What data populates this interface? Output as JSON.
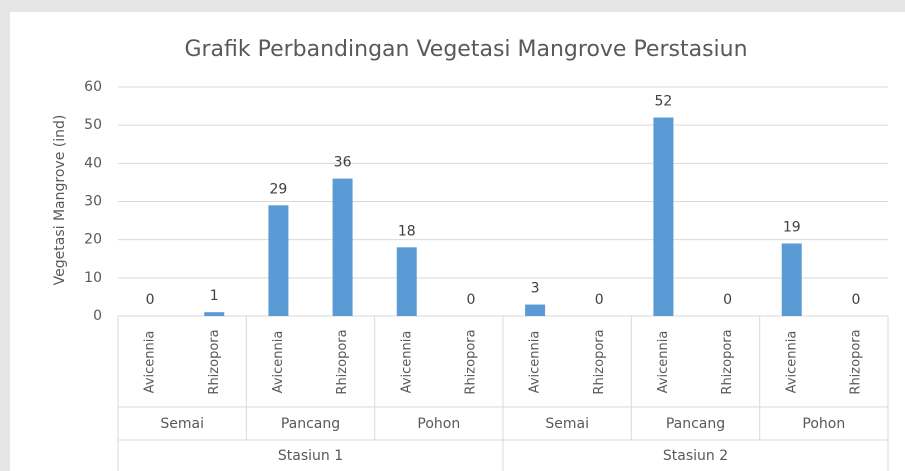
{
  "chart_data": {
    "type": "bar",
    "title": "Grafik Perbandingan Vegetasi Mangrove Perstasiun",
    "y_label": "Vegetasi Mangrove  (ind)",
    "categories": [
      "Avicennia",
      "Rhizopora",
      "Avicennia",
      "Rhizopora",
      "Avicennia",
      "Rhizopora",
      "Avicennia",
      "Rhizopora",
      "Avicennia",
      "Rhizopora",
      "Avicennia",
      "Rhizopora"
    ],
    "groups": [
      "Semai",
      "Pancang",
      "Pohon",
      "Semai",
      "Pancang",
      "Pohon"
    ],
    "stations": [
      "Stasiun 1",
      "Stasiun 2"
    ],
    "values": [
      0,
      1,
      29,
      36,
      18,
      0,
      3,
      0,
      52,
      0,
      19,
      0
    ],
    "color": "#5b9bd5",
    "ylim": [
      0,
      60
    ],
    "yticks": [
      0,
      10,
      20,
      30,
      40,
      50,
      60
    ],
    "grid": true
  }
}
